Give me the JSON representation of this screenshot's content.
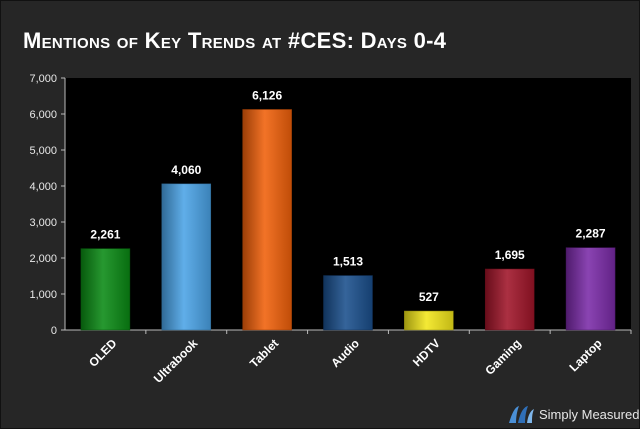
{
  "chart_data": {
    "type": "bar",
    "title": "Mentions of Key Trends at #CES: Days 0-4",
    "categories": [
      "OLED",
      "Ultrabook",
      "Tablet",
      "Audio",
      "HDTV",
      "Gaming",
      "Laptop"
    ],
    "values": [
      2261,
      4060,
      6126,
      1513,
      527,
      1695,
      2287
    ],
    "data_labels": [
      "2,261",
      "4,060",
      "6,126",
      "1,513",
      "527",
      "1,695",
      "2,287"
    ],
    "ylim": [
      0,
      7000
    ],
    "yticks": [
      0,
      1000,
      2000,
      3000,
      4000,
      5000,
      6000,
      7000
    ],
    "ytick_labels": [
      "0",
      "1,000",
      "2,000",
      "3,000",
      "4,000",
      "5,000",
      "6,000",
      "7,000"
    ],
    "xlabel": "",
    "ylabel": "",
    "grid": false,
    "legend": "none",
    "bar_colors": [
      "#0a8a14",
      "#4aa3e6",
      "#f0600a",
      "#1a4f8c",
      "#f2e61a",
      "#a01428",
      "#7a2aa8"
    ]
  },
  "brand": {
    "name": "Simply Measured",
    "icon": "simply-measured-logo-icon"
  }
}
